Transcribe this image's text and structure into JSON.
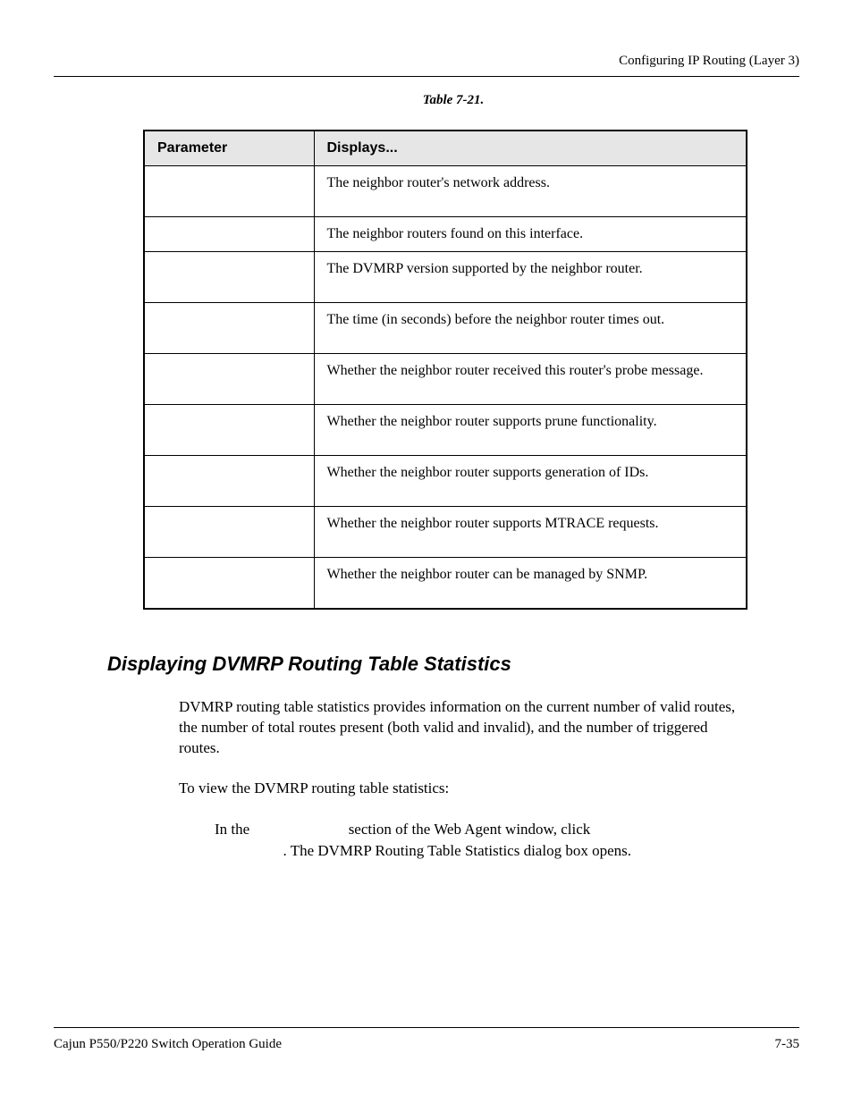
{
  "header": {
    "chapter_title": "Configuring IP Routing (Layer 3)"
  },
  "table": {
    "caption": "Table 7-21.",
    "columns": [
      "Parameter",
      "Displays..."
    ],
    "rows": [
      [
        "",
        "The neighbor router's network address."
      ],
      [
        "",
        "The neighbor routers found on this interface."
      ],
      [
        "",
        "The DVMRP version supported by the neighbor router."
      ],
      [
        "",
        "The time (in seconds) before the neighbor router times out."
      ],
      [
        "",
        "Whether the neighbor router received this router's probe message."
      ],
      [
        "",
        "Whether the neighbor router supports prune functionality."
      ],
      [
        "",
        "Whether the neighbor router supports generation of IDs."
      ],
      [
        "",
        "Whether the neighbor router supports MTRACE requests."
      ],
      [
        "",
        "Whether the neighbor router can be managed by SNMP."
      ]
    ]
  },
  "section": {
    "heading": "Displaying DVMRP Routing Table Statistics",
    "para1": "DVMRP routing table statistics provides information on the current number of valid routes, the number of total routes present (both valid and invalid), and the number of triggered routes.",
    "para2": "To view the DVMRP routing table statistics:",
    "step_line1_a": "In the ",
    "step_line1_b": " section of the Web Agent window, click ",
    "step_line2": ". The DVMRP Routing Table Statistics dialog box opens."
  },
  "footer": {
    "guide_title": "Cajun P550/P220 Switch Operation Guide",
    "page_number": "7-35"
  }
}
